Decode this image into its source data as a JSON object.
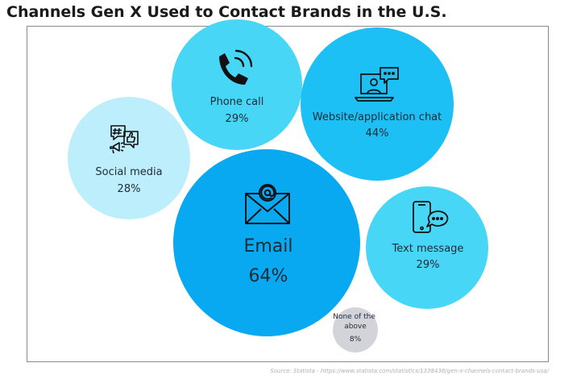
{
  "title": "Channels Gen X Used to Contact Brands in the U.S.",
  "source": "Source: Statista - https://www.statista.com/statistics/1338438/gen-x-channels-contact-brands-usa/",
  "chart_data": {
    "type": "bubble",
    "unit": "%",
    "items": [
      {
        "label": "Phone call",
        "value": "29%",
        "icon": "phone-icon",
        "color": "#48d6f7"
      },
      {
        "label": "Website/application chat",
        "value": "44%",
        "icon": "laptop-chat-icon",
        "color": "#1cc0f4"
      },
      {
        "label": "Social media",
        "value": "28%",
        "icon": "social-media-icon",
        "color": "#bdeefb"
      },
      {
        "label": "Email",
        "value": "64%",
        "icon": "email-icon",
        "color": "#09a9f1"
      },
      {
        "label": "Text message",
        "value": "29%",
        "icon": "smartphone-chat-icon",
        "color": "#48d6f7"
      },
      {
        "label": "None of the above",
        "value": "8%",
        "icon": "",
        "color": "#d3d4d9"
      }
    ]
  }
}
